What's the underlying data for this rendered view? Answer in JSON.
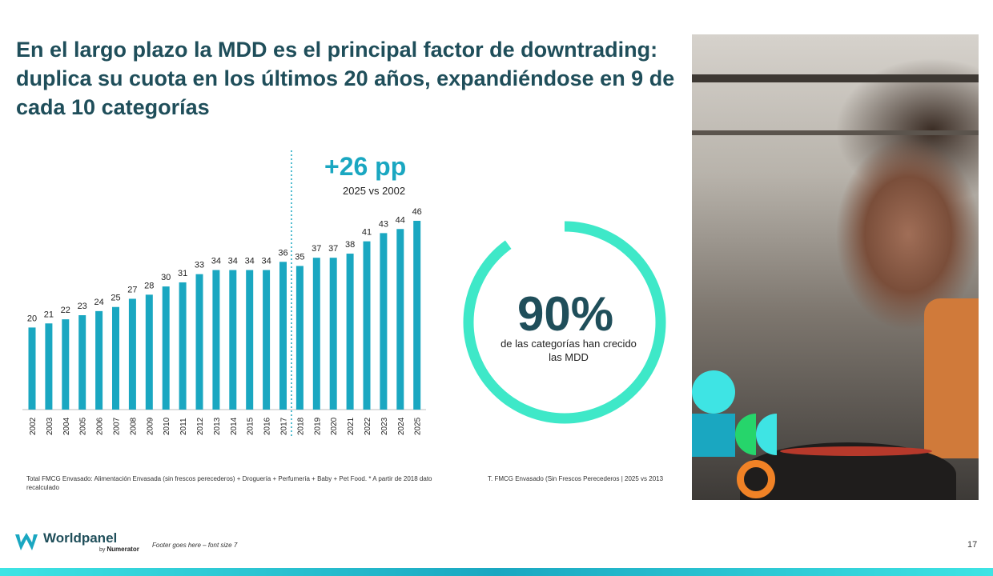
{
  "slide": {
    "title": "En el largo plazo la MDD es el principal factor de downtrading: duplica su cuota en los últimos 20 años, expandiéndose en 9 de cada 10 categorías",
    "page_number": "17",
    "footer": "Footer goes here – font size 7"
  },
  "highlight": {
    "value": "+26 pp",
    "caption": "2025 vs 2002"
  },
  "ring_stat": {
    "value": "90%",
    "fraction": 0.9,
    "caption": "de las categorías han crecido las MDD",
    "color": "#3ee8c8"
  },
  "notes": {
    "left": "Total FMCG Envasado: Alimentación Envasada (sin frescos perecederos) + Droguería + Perfumería + Baby + Pet Food. * A partir de 2018 dato recalculado",
    "right": "T. FMCG Envasado (Sin Frescos Perecederos | 2025 vs 2013"
  },
  "brand": {
    "name": "Worldpanel",
    "by_prefix": "by",
    "by_name": "Numerator",
    "primary_color": "#1aa7c1",
    "title_color": "#1f4e5a"
  },
  "photo": {
    "icon": "person-tasting-food-photo"
  },
  "chart_data": {
    "type": "bar",
    "categories": [
      "2002",
      "2003",
      "2004",
      "2005",
      "2006",
      "2007",
      "2008",
      "2009",
      "2010",
      "2011",
      "2012",
      "2013",
      "2014",
      "2015",
      "2016",
      "2017",
      "2018",
      "2019",
      "2020",
      "2021",
      "2022",
      "2023",
      "2024",
      "2025"
    ],
    "values": [
      20,
      21,
      22,
      23,
      24,
      25,
      27,
      28,
      30,
      31,
      33,
      34,
      34,
      34,
      34,
      36,
      35,
      37,
      37,
      38,
      41,
      43,
      44,
      46
    ],
    "data_labels": true,
    "ylim": [
      0,
      46
    ],
    "break_between": [
      "2017",
      "2018"
    ],
    "bar_color": "#1aa7c1",
    "title": "",
    "xlabel": "",
    "ylabel": "",
    "grid": false,
    "legend": "none"
  }
}
